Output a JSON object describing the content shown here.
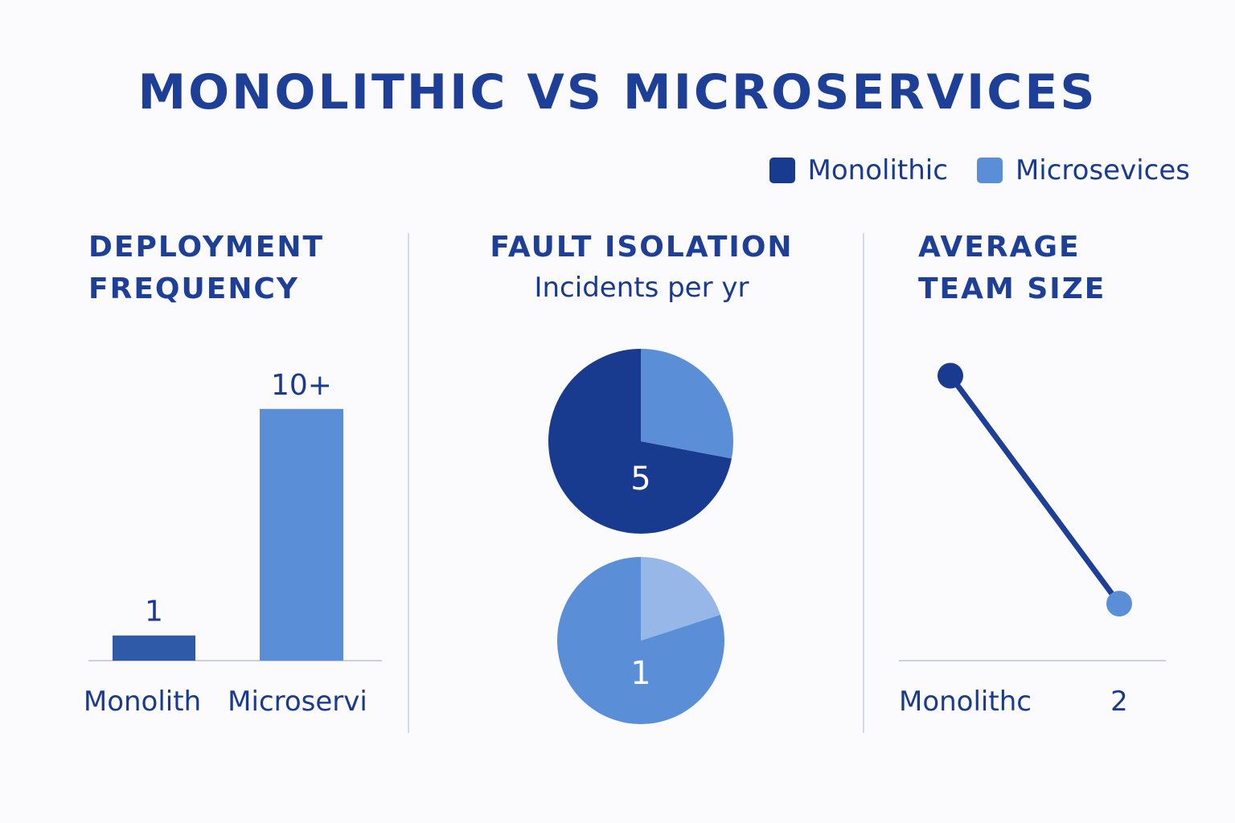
{
  "title": "MONOLITHIC VS MICROSERVICES",
  "legend": [
    {
      "label": "Monolithic",
      "color": "#183b8f"
    },
    {
      "label": "Microsevices",
      "color": "#5a8fd8"
    }
  ],
  "chart_data": [
    {
      "type": "bar",
      "title_line1": "DEPLOYMENT",
      "title_line2": "FREQUENCY",
      "categories": [
        "Monolith",
        "Microservi"
      ],
      "values": [
        1,
        10
      ],
      "value_labels": [
        "1",
        "10+"
      ],
      "colors": [
        "#2f5aa8",
        "#5a8fd8"
      ],
      "ylim": [
        0,
        10.6
      ]
    },
    {
      "type": "pie",
      "title": "FAULT ISOLATION",
      "subtitle": "Incidents per yr",
      "pies": [
        {
          "label": "5",
          "slices": [
            {
              "value": 0.72,
              "color": "#183b8f"
            },
            {
              "value": 0.28,
              "color": "#5a8fd8"
            }
          ]
        },
        {
          "label": "1",
          "slices": [
            {
              "value": 0.8,
              "color": "#5a8fd8"
            },
            {
              "value": 0.2,
              "color": "#96b7e8"
            }
          ]
        }
      ]
    },
    {
      "type": "line",
      "title_line1": "AVERAGE",
      "title_line2": "TEAM SIZE",
      "x": [
        0,
        1
      ],
      "y": [
        10,
        2
      ],
      "ylim": [
        0,
        11
      ],
      "point_colors": [
        "#183b8f",
        "#5a8fd8"
      ],
      "line_color": "#1d3f98",
      "x_labels": [
        "Monolithc",
        "2"
      ]
    }
  ]
}
